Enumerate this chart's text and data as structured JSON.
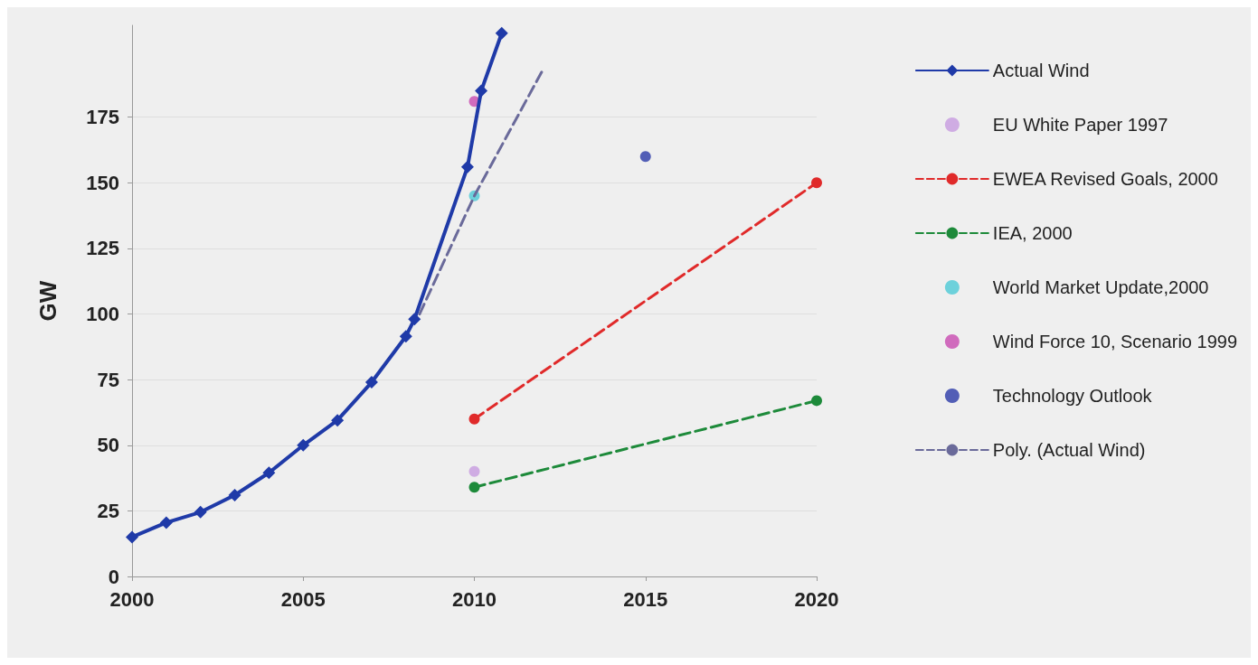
{
  "chart_data": {
    "type": "line",
    "ylabel": "GW",
    "xlim": [
      2000,
      2020
    ],
    "xticks": [
      2000,
      2005,
      2010,
      2015,
      2020
    ],
    "ylim": [
      0,
      210
    ],
    "yticks": [
      0,
      25,
      50,
      75,
      100,
      125,
      150,
      175
    ],
    "grid": "y",
    "legend": "right",
    "series": [
      {
        "name": "Actual Wind",
        "color": "#1f3aa8",
        "marker": "diamond",
        "line_style": "solid",
        "x": [
          2000,
          2001,
          2002,
          2003,
          2004,
          2005,
          2006,
          2007,
          2008,
          2008.25,
          2009.8,
          2010.2,
          2010.8
        ],
        "values": [
          15,
          20.5,
          24.5,
          31,
          39.5,
          50,
          59.5,
          74,
          91.5,
          98,
          156,
          185,
          207
        ]
      },
      {
        "name": "EU White Paper 1997",
        "type": "scatter",
        "color": "#c79be0",
        "marker": "circle",
        "x": [
          2010
        ],
        "values": [
          40
        ]
      },
      {
        "name": "EWEA Revised Goals, 2000",
        "color": "#e02a2a",
        "marker": "circle",
        "line_style": "dashed",
        "x": [
          2010,
          2020
        ],
        "values": [
          60,
          150
        ]
      },
      {
        "name": "IEA, 2000",
        "color": "#1d8a3a",
        "marker": "circle",
        "line_style": "dashed",
        "x": [
          2010,
          2020
        ],
        "values": [
          34,
          67
        ]
      },
      {
        "name": "World Market Update,2000",
        "type": "scatter",
        "color": "#4cc9d6",
        "marker": "circle",
        "x": [
          2010
        ],
        "values": [
          145
        ]
      },
      {
        "name": "Wind Force 10, Scenario 1999",
        "type": "scatter",
        "color": "#c84ab0",
        "marker": "circle",
        "x": [
          2010
        ],
        "values": [
          181
        ]
      },
      {
        "name": "Technology Outlook",
        "type": "scatter",
        "color": "#2a3aa8",
        "marker": "circle",
        "x": [
          2015
        ],
        "values": [
          160
        ]
      },
      {
        "name": "Poly. (Actual Wind)",
        "color": "#6a6a9a",
        "marker": "none",
        "line_style": "dashed",
        "x": [
          2008.4,
          2010,
          2012
        ],
        "values": [
          100,
          145,
          193
        ]
      }
    ]
  }
}
